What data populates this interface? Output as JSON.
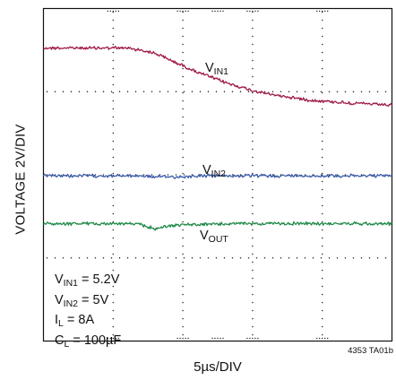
{
  "chart_data": {
    "type": "line",
    "xlabel": "5µs/DIV",
    "ylabel": "VOLTAGE 2V/DIV",
    "figure_id": "4353 TA01b",
    "divisions": {
      "x": 10,
      "y": 8
    },
    "grid": "dotted",
    "x_unit_per_div": "5µs",
    "y_unit_per_div": "2V",
    "x": [
      0,
      2,
      4,
      6,
      8,
      10,
      12,
      14,
      16,
      18,
      20,
      22,
      24,
      26,
      28,
      30,
      32,
      34,
      36,
      38,
      40,
      42,
      44,
      46,
      48,
      50
    ],
    "series": [
      {
        "name": "VIN1",
        "label_main": "V",
        "label_sub": "IN1",
        "color": "#9e1a43",
        "values": [
          6.1,
          6.1,
          6.1,
          6.1,
          6.1,
          6.1,
          6.1,
          6.0,
          5.85,
          5.55,
          5.25,
          4.95,
          4.7,
          4.45,
          4.25,
          4.05,
          3.9,
          3.8,
          3.7,
          3.6,
          3.55,
          3.5,
          3.45,
          3.42,
          3.38,
          3.35
        ]
      },
      {
        "name": "VIN2",
        "label_main": "V",
        "label_sub": "IN2",
        "color": "#3a5aa8",
        "values": [
          -0.05,
          -0.05,
          -0.05,
          -0.05,
          -0.05,
          -0.05,
          -0.05,
          -0.05,
          -0.1,
          -0.1,
          -0.1,
          -0.05,
          -0.05,
          -0.05,
          -0.05,
          -0.05,
          -0.05,
          -0.05,
          -0.05,
          -0.05,
          -0.05,
          -0.05,
          -0.05,
          -0.05,
          -0.05,
          -0.05
        ]
      },
      {
        "name": "VOUT",
        "label_main": "V",
        "label_sub": "OUT",
        "color": "#1e8a47",
        "values": [
          -2.35,
          -2.35,
          -2.35,
          -2.35,
          -2.35,
          -2.35,
          -2.35,
          -2.4,
          -2.6,
          -2.45,
          -2.4,
          -2.4,
          -2.38,
          -2.36,
          -2.35,
          -2.35,
          -2.35,
          -2.35,
          -2.35,
          -2.35,
          -2.35,
          -2.35,
          -2.35,
          -2.35,
          -2.35,
          -2.35
        ]
      }
    ],
    "conditions": [
      {
        "main": "V",
        "sub": "IN1",
        "rest": " = 5.2V"
      },
      {
        "main": "V",
        "sub": "IN2",
        "rest": " = 5V"
      },
      {
        "main": "I",
        "sub": "L",
        "rest": " = 8A"
      },
      {
        "main": "C",
        "sub": "L",
        "rest": " = 100µF"
      }
    ]
  }
}
